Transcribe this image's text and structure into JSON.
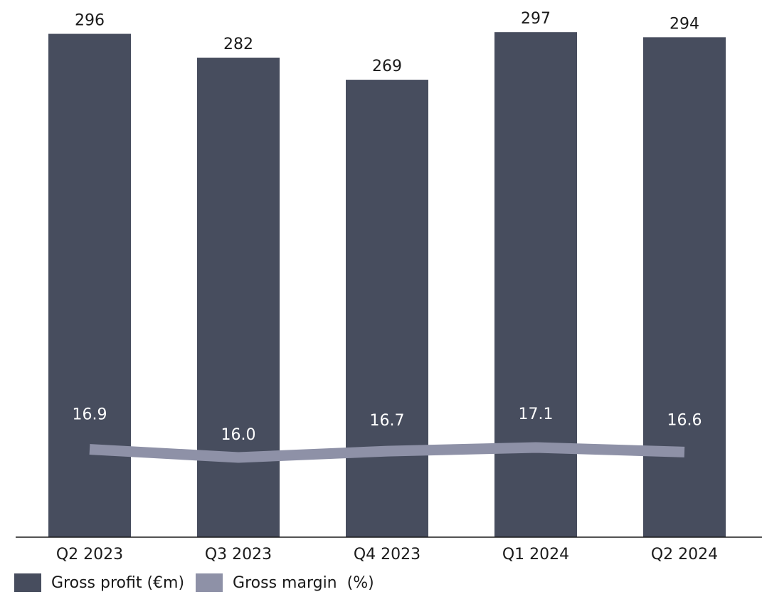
{
  "chart_data": {
    "type": "bar",
    "categories": [
      "Q2 2023",
      "Q3 2023",
      "Q4 2023",
      "Q1 2024",
      "Q2 2024"
    ],
    "series": [
      {
        "name": "Gross profit (€m)",
        "type": "bar",
        "values": [
          296,
          282,
          269,
          297,
          294
        ],
        "labels": [
          "296",
          "282",
          "269",
          "297",
          "294"
        ]
      },
      {
        "name": "Gross margin  (%)",
        "type": "line",
        "values": [
          16.9,
          16.0,
          16.7,
          17.1,
          16.6
        ],
        "labels": [
          "16.9",
          "16.0",
          "16.7",
          "17.1",
          "16.6"
        ]
      }
    ],
    "ylim": [
      0,
      300
    ],
    "grid": false,
    "legend_position": "bottom-left"
  },
  "colors": {
    "bar": "#474d5e",
    "line": "#8e91a7",
    "axis": "#1a1a1a"
  }
}
